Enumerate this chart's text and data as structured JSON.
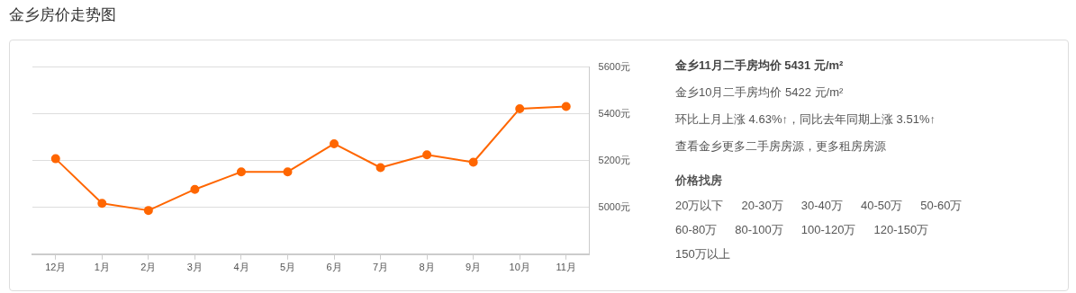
{
  "chart_data": [
    {
      "type": "line",
      "title": "金乡房价走势图",
      "categories": [
        "12月",
        "1月",
        "2月",
        "3月",
        "4月",
        "5月",
        "6月",
        "7月",
        "8月",
        "9月",
        "10月",
        "11月"
      ],
      "series": [
        {
          "color": "#ff6600",
          "values": [
            5208,
            5017,
            4987,
            5077,
            5152,
            5152,
            5272,
            5170,
            5225,
            5193,
            5422,
            5431
          ]
        }
      ],
      "ylim": [
        4800,
        5600
      ],
      "yticks": [
        {
          "value": 5000,
          "label": "5000元"
        },
        {
          "value": 5200,
          "label": "5200元"
        },
        {
          "value": 5400,
          "label": "5400元"
        },
        {
          "value": 5600,
          "label": "5600元"
        }
      ],
      "grid": "y",
      "marker": "circle"
    },
    {
      "type": "other",
      "title": "金乡11月二手房均价 5431 元/m²",
      "annotations": [
        "金乡10月二手房均价 5422 元/m²",
        "环比上月上涨 4.63%↑，同比去年同期上涨 3.51%↑",
        "查看金乡更多二手房房源，更多租房房源",
        "价格找房",
        "20万以下",
        "20-30万",
        "30-40万",
        "40-50万",
        "50-60万",
        "60-80万",
        "80-100万",
        "100-120万",
        "120-150万",
        "150万以上"
      ]
    }
  ]
}
